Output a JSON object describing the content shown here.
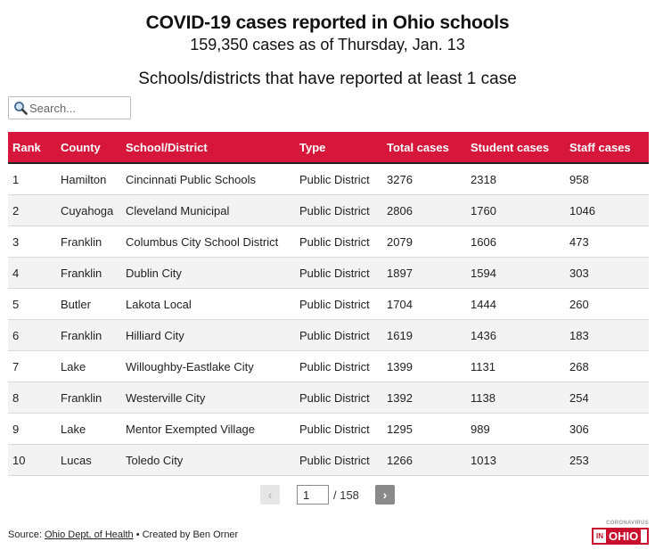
{
  "header": {
    "title": "COVID-19 cases reported in Ohio schools",
    "subtitle": "159,350 cases as of Thursday, Jan. 13",
    "section_title": "Schools/districts that have reported at least 1 case"
  },
  "search": {
    "placeholder": "Search...",
    "value": ""
  },
  "table": {
    "columns": [
      "Rank",
      "County",
      "School/District",
      "Type",
      "Total cases",
      "Student cases",
      "Staff cases"
    ],
    "rows": [
      [
        "1",
        "Hamilton",
        "Cincinnati Public Schools",
        "Public District",
        "3276",
        "2318",
        "958"
      ],
      [
        "2",
        "Cuyahoga",
        "Cleveland Municipal",
        "Public District",
        "2806",
        "1760",
        "1046"
      ],
      [
        "3",
        "Franklin",
        "Columbus City School District",
        "Public District",
        "2079",
        "1606",
        "473"
      ],
      [
        "4",
        "Franklin",
        "Dublin City",
        "Public District",
        "1897",
        "1594",
        "303"
      ],
      [
        "5",
        "Butler",
        "Lakota Local",
        "Public District",
        "1704",
        "1444",
        "260"
      ],
      [
        "6",
        "Franklin",
        "Hilliard City",
        "Public District",
        "1619",
        "1436",
        "183"
      ],
      [
        "7",
        "Lake",
        "Willoughby-Eastlake City",
        "Public District",
        "1399",
        "1131",
        "268"
      ],
      [
        "8",
        "Franklin",
        "Westerville City",
        "Public District",
        "1392",
        "1138",
        "254"
      ],
      [
        "9",
        "Lake",
        "Mentor Exempted Village",
        "Public District",
        "1295",
        "989",
        "306"
      ],
      [
        "10",
        "Lucas",
        "Toledo City",
        "Public District",
        "1266",
        "1013",
        "253"
      ]
    ]
  },
  "pagination": {
    "prev_label": "‹",
    "next_label": "›",
    "current_page": "1",
    "total_label": "/ 158"
  },
  "footer": {
    "source_prefix": "Source: ",
    "source_link": "Ohio Dept. of Health",
    "credit": " • Created by Ben Orner"
  },
  "logo": {
    "top_text": "CORONAVIRUS",
    "in_text": "IN",
    "ohio_text": "OHIO"
  },
  "colors": {
    "header_bg": "#d6163b",
    "logo_red": "#c8102e",
    "row_alt": "#f3f3f3"
  },
  "icons": {
    "search": "magnifier-icon"
  }
}
